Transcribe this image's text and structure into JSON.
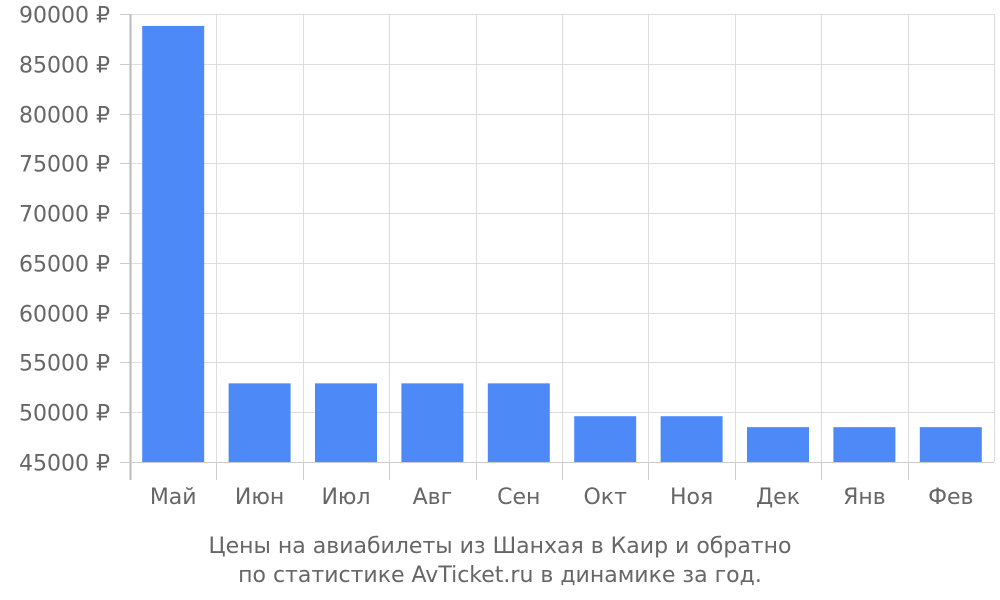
{
  "chart_data": {
    "type": "bar",
    "categories": [
      "Май",
      "Июн",
      "Июл",
      "Авг",
      "Сен",
      "Окт",
      "Ноя",
      "Дек",
      "Янв",
      "Фев"
    ],
    "values": [
      88800,
      52900,
      52900,
      52900,
      52900,
      49600,
      49600,
      48500,
      48500,
      48500
    ],
    "ylim": [
      45000,
      90000
    ],
    "yticks": [
      90000,
      85000,
      80000,
      75000,
      70000,
      65000,
      60000,
      55000,
      50000,
      45000
    ],
    "ytick_suffix": " ₽",
    "grid": true,
    "bar_color": "#4d8af8",
    "title_lines": [
      "Цены на авиабилеты из Шанхая в Каир и обратно",
      "по статистике AvTicket.ru в динамике за год."
    ]
  }
}
